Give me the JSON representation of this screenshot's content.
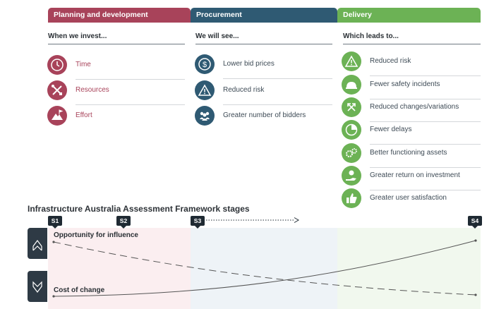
{
  "columns": [
    {
      "header": "Planning and development",
      "subheading": "When we invest...",
      "color": "#a8435a",
      "items": [
        {
          "icon": "clock-icon",
          "label": "Time"
        },
        {
          "icon": "tools-icon",
          "label": "Resources"
        },
        {
          "icon": "mountain-flag-icon",
          "label": "Effort"
        }
      ]
    },
    {
      "header": "Procurement",
      "subheading": "We will see...",
      "color": "#2f5a73",
      "items": [
        {
          "icon": "dollar-coin-icon",
          "label": "Lower bid prices"
        },
        {
          "icon": "warning-triangle-icon",
          "label": "Reduced risk"
        },
        {
          "icon": "people-group-icon",
          "label": "Greater number of bidders"
        }
      ]
    },
    {
      "header": "Delivery",
      "subheading": "Which leads to...",
      "color": "#6cb255",
      "items": [
        {
          "icon": "warning-triangle-icon",
          "label": "Reduced risk"
        },
        {
          "icon": "hard-hat-icon",
          "label": "Fewer safety incidents"
        },
        {
          "icon": "arrows-icon",
          "label": "Reduced changes/variations"
        },
        {
          "icon": "clock-pie-icon",
          "label": "Fewer delays"
        },
        {
          "icon": "gears-icon",
          "label": "Better functioning assets"
        },
        {
          "icon": "money-hand-icon",
          "label": "Greater return on investment"
        },
        {
          "icon": "thumbs-up-icon",
          "label": "Greater user satisfaction"
        }
      ]
    }
  ],
  "framework": {
    "title": "Infrastructure Australia Assessment Framework stages",
    "stages": [
      "S1",
      "S2",
      "S3",
      "S4"
    ],
    "lines": [
      {
        "label": "Opportunity for influence",
        "icon": "chevron-up-icon",
        "trend": "decreasing",
        "style": "dashed"
      },
      {
        "label": "Cost of change",
        "icon": "chevron-down-icon",
        "trend": "increasing",
        "style": "solid"
      }
    ]
  }
}
